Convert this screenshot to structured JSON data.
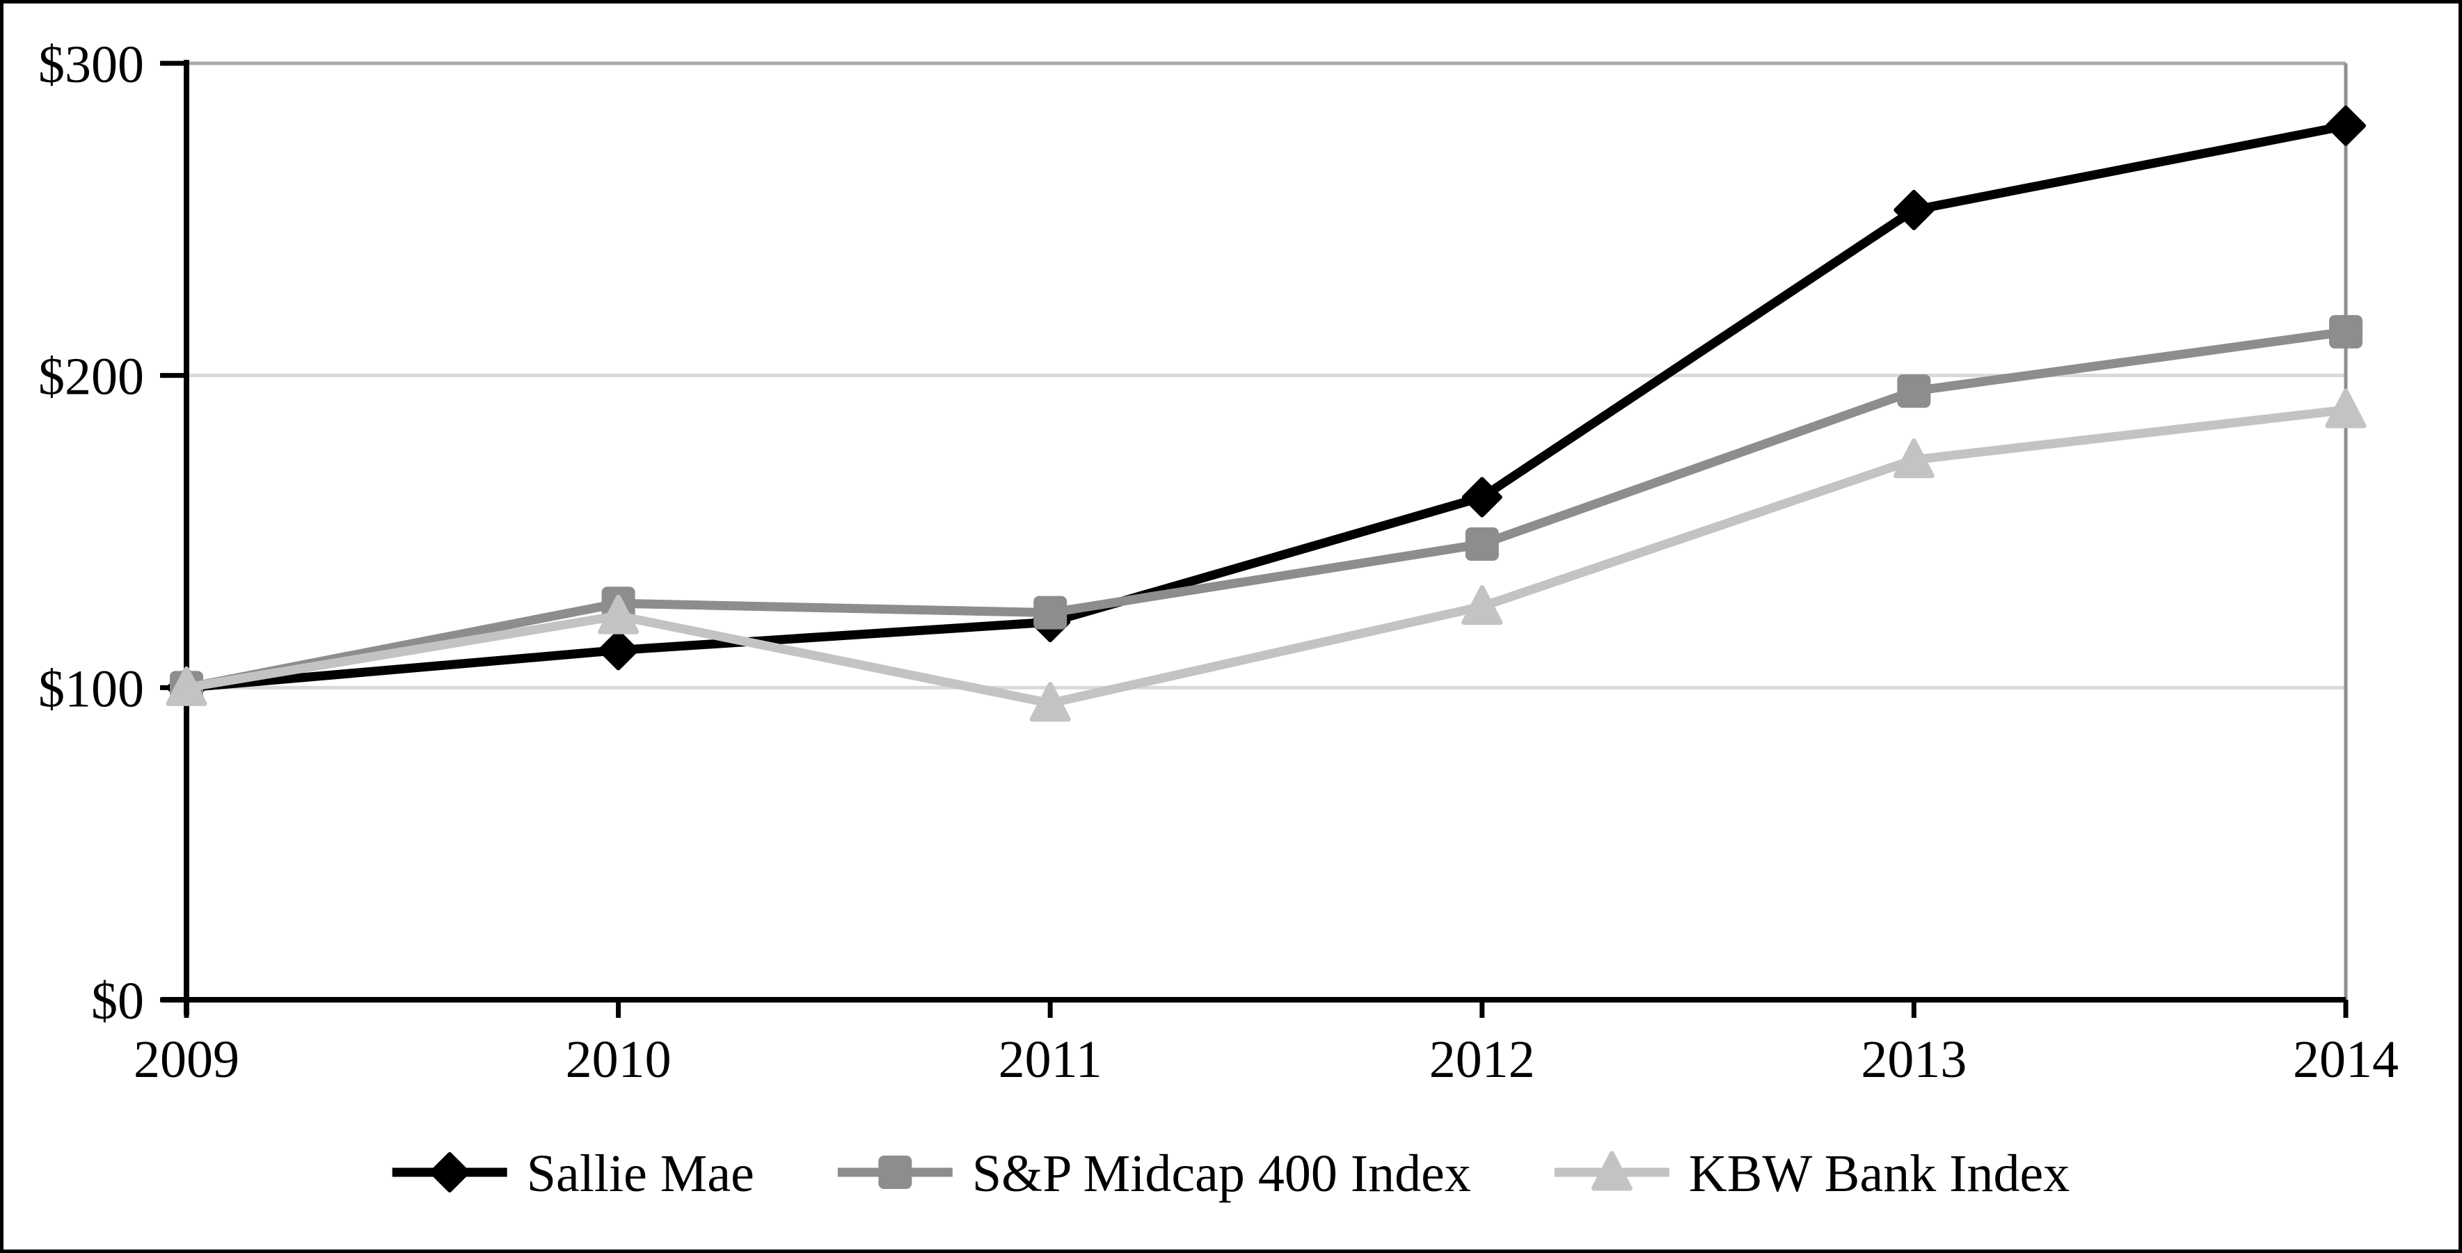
{
  "figure": {
    "background": "#ffffff",
    "outer_border_color": "#000000"
  },
  "chart_data": {
    "type": "line",
    "title": "",
    "categories": [
      "2009",
      "2010",
      "2011",
      "2012",
      "2013",
      "2014"
    ],
    "series": [
      {
        "name": "Sallie Mae",
        "marker": "diamond",
        "color": "#000000",
        "values": [
          100,
          112,
          121,
          161,
          253,
          280
        ]
      },
      {
        "name": "S&P Midcap 400 Index",
        "marker": "square",
        "color": "#8d8d8d",
        "values": [
          100,
          127,
          124,
          146,
          195,
          214
        ]
      },
      {
        "name": "KBW Bank Index",
        "marker": "triangle",
        "color": "#c3c3c3",
        "values": [
          100,
          123,
          95,
          126,
          173,
          189
        ]
      }
    ],
    "ylim": [
      0,
      300
    ],
    "y_ticks": [
      300,
      200,
      100,
      0
    ],
    "y_tick_labels": [
      "$300",
      "$200",
      "$100",
      "$0"
    ],
    "x_tick_labels": [
      "2009",
      "2010",
      "2011",
      "2012",
      "2013",
      "2014"
    ],
    "grid": "horizontal gridlines at $100 and $200",
    "legend_position": "bottom",
    "colors": {
      "axis": "#000000",
      "gridline": "#d9d9d9",
      "plot_border_top": "#a8a8a8",
      "plot_border_right": "#8f8f8f",
      "tick": "#000000",
      "label": "#000000"
    }
  }
}
